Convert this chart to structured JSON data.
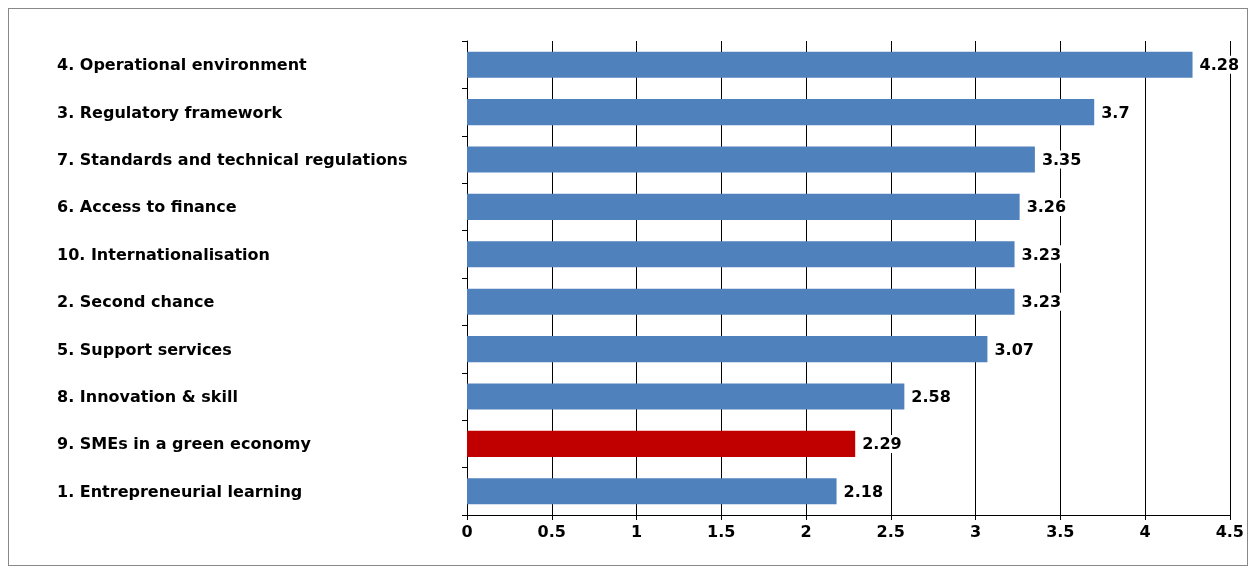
{
  "chart_data": {
    "type": "bar",
    "orientation": "horizontal",
    "categories": [
      "4. Operational environment",
      "3. Regulatory framework",
      "7. Standards and technical regulations",
      "6. Access to finance",
      "10. Internationalisation",
      "2. Second chance",
      "5. Support services",
      "8. Innovation & skill",
      "9. SMEs in a green economy",
      "1. Entrepreneurial learning"
    ],
    "values": [
      4.28,
      3.7,
      3.35,
      3.26,
      3.23,
      3.23,
      3.07,
      2.58,
      2.29,
      2.18
    ],
    "colors": [
      "#4f81bd",
      "#4f81bd",
      "#4f81bd",
      "#4f81bd",
      "#4f81bd",
      "#4f81bd",
      "#4f81bd",
      "#4f81bd",
      "#c00000",
      "#4f81bd"
    ],
    "xlim": [
      0,
      4.5
    ],
    "xticks": [
      0,
      0.5,
      1,
      1.5,
      2,
      2.5,
      3,
      3.5,
      4,
      4.5
    ],
    "grid": "x",
    "data_labels": true
  }
}
